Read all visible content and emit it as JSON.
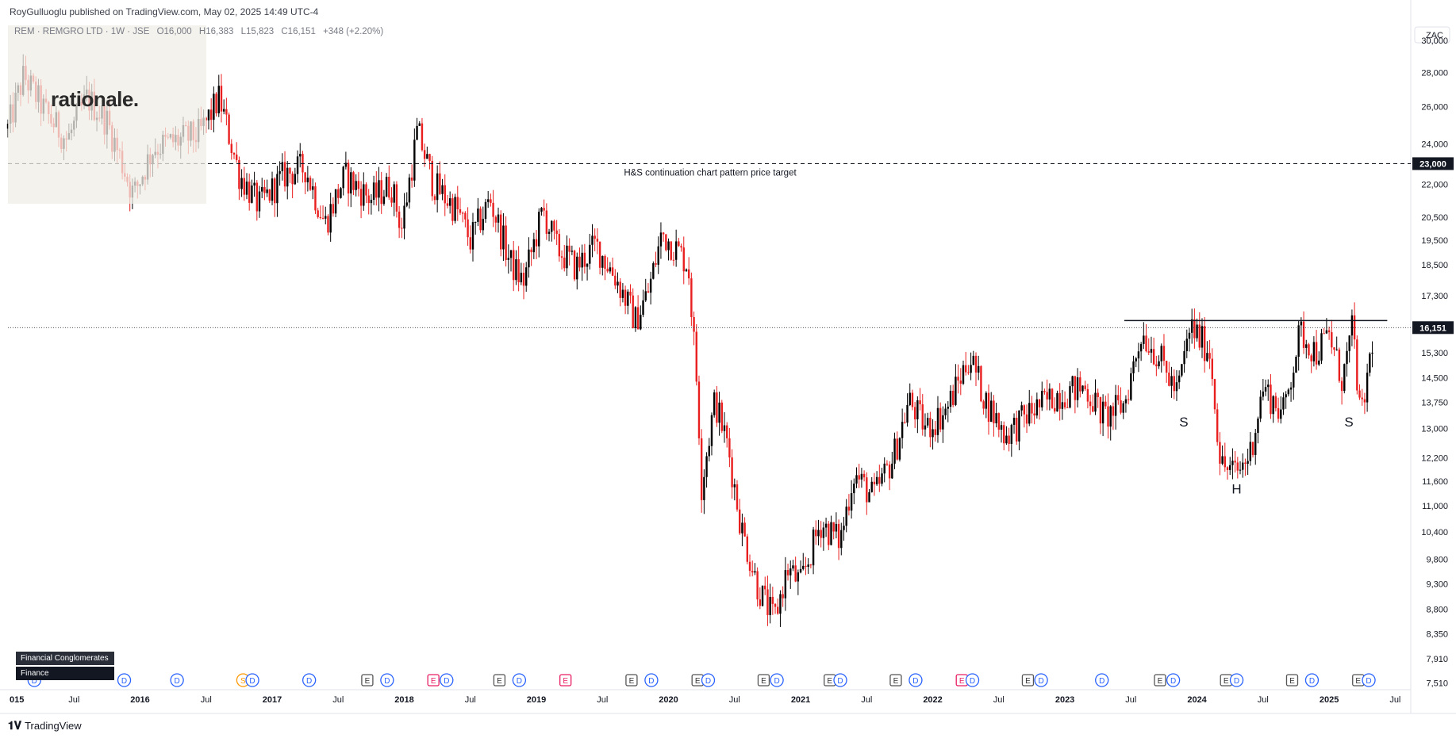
{
  "header": {
    "publisher": "RoyGulluoglu published on TradingView.com, May 02, 2025 14:49 UTC-4"
  },
  "legend": {
    "symbol": "REM · REMGRO LTD · 1W · JSE",
    "open": "O16,000",
    "high": "H16,383",
    "low": "L15,823",
    "close": "C16,151",
    "change": "+348 (+2.20%)"
  },
  "logo": {
    "text": "rationale."
  },
  "currency": "ZAC",
  "footer": {
    "brand": "TradingView"
  },
  "tags": [
    "Financial Conglomerates",
    "Finance"
  ],
  "colors": {
    "up": "#000000",
    "down": "#e91e1e",
    "background": "#ffffff",
    "axis_text": "#131722"
  },
  "chart_data": {
    "type": "candlestick",
    "interval": "1W",
    "x_axis": {
      "range": [
        2015.0,
        2025.6
      ],
      "tick_labels": [
        {
          "t": 2015.0,
          "label": "015"
        },
        {
          "t": 2015.5,
          "label": "Jul"
        },
        {
          "t": 2016.0,
          "label": "2016"
        },
        {
          "t": 2016.5,
          "label": "Jul"
        },
        {
          "t": 2017.0,
          "label": "2017"
        },
        {
          "t": 2017.5,
          "label": "Jul"
        },
        {
          "t": 2018.0,
          "label": "2018"
        },
        {
          "t": 2018.5,
          "label": "Jul"
        },
        {
          "t": 2019.0,
          "label": "2019"
        },
        {
          "t": 2019.5,
          "label": "Jul"
        },
        {
          "t": 2020.0,
          "label": "2020"
        },
        {
          "t": 2020.5,
          "label": "Jul"
        },
        {
          "t": 2021.0,
          "label": "2021"
        },
        {
          "t": 2021.5,
          "label": "Jul"
        },
        {
          "t": 2022.0,
          "label": "2022"
        },
        {
          "t": 2022.5,
          "label": "Jul"
        },
        {
          "t": 2023.0,
          "label": "2023"
        },
        {
          "t": 2023.5,
          "label": "Jul"
        },
        {
          "t": 2024.0,
          "label": "2024"
        },
        {
          "t": 2024.5,
          "label": "Jul"
        },
        {
          "t": 2025.0,
          "label": "2025"
        },
        {
          "t": 2025.5,
          "label": "Jul"
        }
      ]
    },
    "y_axis": {
      "scale": "log",
      "range": [
        7400,
        31200
      ],
      "tick_labels": [
        "30,000",
        "28,000",
        "26,000",
        "24,000",
        "22,000",
        "20,500",
        "19,500",
        "18,500",
        "17,300",
        "15,300",
        "14,500",
        "13,750",
        "13,000",
        "12,200",
        "11,600",
        "11,000",
        "10,400",
        "9,800",
        "9,300",
        "8,800",
        "8,350",
        "7,910",
        "7,510"
      ]
    },
    "price_path": [
      {
        "t": 2015.0,
        "price": 24800
      },
      {
        "t": 2015.12,
        "price": 27800
      },
      {
        "t": 2015.3,
        "price": 25500
      },
      {
        "t": 2015.45,
        "price": 24200
      },
      {
        "t": 2015.6,
        "price": 26500
      },
      {
        "t": 2015.75,
        "price": 25200
      },
      {
        "t": 2015.95,
        "price": 21500
      },
      {
        "t": 2016.1,
        "price": 23800
      },
      {
        "t": 2016.3,
        "price": 24200
      },
      {
        "t": 2016.45,
        "price": 24500
      },
      {
        "t": 2016.6,
        "price": 26500
      },
      {
        "t": 2016.75,
        "price": 22500
      },
      {
        "t": 2016.9,
        "price": 21000
      },
      {
        "t": 2017.1,
        "price": 22500
      },
      {
        "t": 2017.25,
        "price": 22800
      },
      {
        "t": 2017.4,
        "price": 20200
      },
      {
        "t": 2017.55,
        "price": 22400
      },
      {
        "t": 2017.75,
        "price": 21300
      },
      {
        "t": 2017.9,
        "price": 22000
      },
      {
        "t": 2017.98,
        "price": 20000
      },
      {
        "t": 2018.1,
        "price": 24700
      },
      {
        "t": 2018.22,
        "price": 22000
      },
      {
        "t": 2018.4,
        "price": 20800
      },
      {
        "t": 2018.5,
        "price": 19500
      },
      {
        "t": 2018.65,
        "price": 21300
      },
      {
        "t": 2018.8,
        "price": 18600
      },
      {
        "t": 2018.9,
        "price": 17800
      },
      {
        "t": 2019.05,
        "price": 20800
      },
      {
        "t": 2019.15,
        "price": 19200
      },
      {
        "t": 2019.3,
        "price": 18400
      },
      {
        "t": 2019.45,
        "price": 19300
      },
      {
        "t": 2019.6,
        "price": 18000
      },
      {
        "t": 2019.75,
        "price": 16400
      },
      {
        "t": 2019.85,
        "price": 17500
      },
      {
        "t": 2019.95,
        "price": 19800
      },
      {
        "t": 2020.08,
        "price": 19000
      },
      {
        "t": 2020.15,
        "price": 18500
      },
      {
        "t": 2020.22,
        "price": 14000
      },
      {
        "t": 2020.25,
        "price": 11500
      },
      {
        "t": 2020.35,
        "price": 13800
      },
      {
        "t": 2020.45,
        "price": 12500
      },
      {
        "t": 2020.55,
        "price": 10500
      },
      {
        "t": 2020.68,
        "price": 9200
      },
      {
        "t": 2020.8,
        "price": 8600
      },
      {
        "t": 2020.9,
        "price": 9600
      },
      {
        "t": 2021.0,
        "price": 9300
      },
      {
        "t": 2021.15,
        "price": 10600
      },
      {
        "t": 2021.3,
        "price": 10200
      },
      {
        "t": 2021.4,
        "price": 11800
      },
      {
        "t": 2021.55,
        "price": 11200
      },
      {
        "t": 2021.7,
        "price": 12200
      },
      {
        "t": 2021.82,
        "price": 13800
      },
      {
        "t": 2021.95,
        "price": 13000
      },
      {
        "t": 2022.1,
        "price": 13500
      },
      {
        "t": 2022.28,
        "price": 15200
      },
      {
        "t": 2022.4,
        "price": 13800
      },
      {
        "t": 2022.55,
        "price": 12800
      },
      {
        "t": 2022.75,
        "price": 13500
      },
      {
        "t": 2022.95,
        "price": 14000
      },
      {
        "t": 2023.15,
        "price": 14200
      },
      {
        "t": 2023.3,
        "price": 13300
      },
      {
        "t": 2023.45,
        "price": 13700
      },
      {
        "t": 2023.58,
        "price": 16000
      },
      {
        "t": 2023.72,
        "price": 15100
      },
      {
        "t": 2023.85,
        "price": 14000
      },
      {
        "t": 2023.95,
        "price": 16200
      },
      {
        "t": 2024.1,
        "price": 15300
      },
      {
        "t": 2024.18,
        "price": 12000
      },
      {
        "t": 2024.3,
        "price": 11800
      },
      {
        "t": 2024.4,
        "price": 12300
      },
      {
        "t": 2024.5,
        "price": 14200
      },
      {
        "t": 2024.65,
        "price": 13400
      },
      {
        "t": 2024.78,
        "price": 16000
      },
      {
        "t": 2024.9,
        "price": 15300
      },
      {
        "t": 2025.0,
        "price": 15900
      },
      {
        "t": 2025.1,
        "price": 14400
      },
      {
        "t": 2025.18,
        "price": 16200
      },
      {
        "t": 2025.24,
        "price": 13100
      },
      {
        "t": 2025.34,
        "price": 16151
      }
    ],
    "horizontal_levels": [
      {
        "price": 23000,
        "style": "dashed",
        "label": "H&S continuation chart pattern price target",
        "axis_label": "23,000"
      },
      {
        "price": 16151,
        "style": "dotted",
        "axis_label": "16,151"
      }
    ],
    "neckline": {
      "from_t": 2023.45,
      "to_t": 2025.44,
      "price": 16400
    },
    "annotations": [
      {
        "text": "S",
        "t": 2023.9,
        "price": 13050
      },
      {
        "text": "H",
        "t": 2024.3,
        "price": 11300
      },
      {
        "text": "S",
        "t": 2025.15,
        "price": 13050
      }
    ],
    "events": [
      {
        "t": 2015.2,
        "type": "D"
      },
      {
        "t": 2015.88,
        "type": "D"
      },
      {
        "t": 2016.28,
        "type": "D"
      },
      {
        "t": 2016.78,
        "type": "S"
      },
      {
        "t": 2016.85,
        "type": "D"
      },
      {
        "t": 2017.28,
        "type": "D"
      },
      {
        "t": 2017.72,
        "type": "E"
      },
      {
        "t": 2017.87,
        "type": "D"
      },
      {
        "t": 2018.22,
        "type": "E"
      },
      {
        "t": 2018.32,
        "type": "D"
      },
      {
        "t": 2018.72,
        "type": "E"
      },
      {
        "t": 2018.87,
        "type": "D"
      },
      {
        "t": 2019.22,
        "type": "E"
      },
      {
        "t": 2019.72,
        "type": "E"
      },
      {
        "t": 2019.87,
        "type": "D"
      },
      {
        "t": 2020.22,
        "type": "E"
      },
      {
        "t": 2020.3,
        "type": "D"
      },
      {
        "t": 2020.72,
        "type": "E"
      },
      {
        "t": 2020.82,
        "type": "D"
      },
      {
        "t": 2021.22,
        "type": "E"
      },
      {
        "t": 2021.3,
        "type": "D"
      },
      {
        "t": 2021.72,
        "type": "E"
      },
      {
        "t": 2021.87,
        "type": "D"
      },
      {
        "t": 2022.22,
        "type": "E"
      },
      {
        "t": 2022.3,
        "type": "D"
      },
      {
        "t": 2022.72,
        "type": "E"
      },
      {
        "t": 2022.82,
        "type": "D"
      },
      {
        "t": 2023.28,
        "type": "D"
      },
      {
        "t": 2023.72,
        "type": "E"
      },
      {
        "t": 2023.82,
        "type": "D"
      },
      {
        "t": 2024.22,
        "type": "E"
      },
      {
        "t": 2024.3,
        "type": "D"
      },
      {
        "t": 2024.72,
        "type": "E"
      },
      {
        "t": 2024.87,
        "type": "D"
      },
      {
        "t": 2025.22,
        "type": "E"
      },
      {
        "t": 2025.3,
        "type": "D"
      }
    ]
  }
}
